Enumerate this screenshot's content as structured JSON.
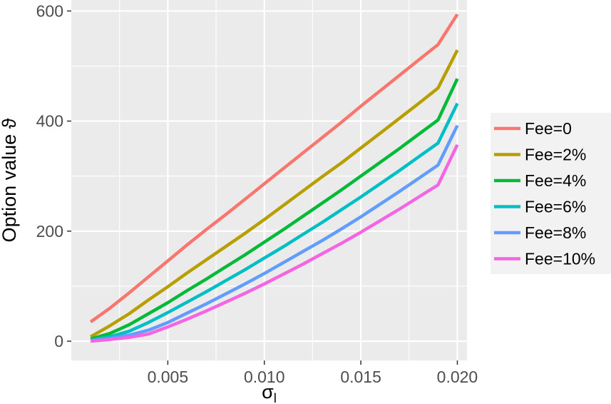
{
  "chart_data": {
    "type": "line",
    "xlabel": "σ",
    "xlabel_sub": "l",
    "ylabel": "Option value ϑ",
    "xlim": [
      0.0,
      0.0205
    ],
    "ylim": [
      -35,
      620
    ],
    "x_ticks": [
      0.005,
      0.01,
      0.015,
      0.02
    ],
    "x_tick_labels": [
      "0.005",
      "0.010",
      "0.015",
      "0.020"
    ],
    "y_ticks": [
      0,
      200,
      400,
      600
    ],
    "y_tick_labels": [
      "0",
      "200",
      "400",
      "600"
    ],
    "grid": true,
    "legend_position": "right",
    "x": [
      0.001,
      0.002,
      0.003,
      0.004,
      0.005,
      0.006,
      0.007,
      0.008,
      0.009,
      0.01,
      0.011,
      0.012,
      0.013,
      0.014,
      0.015,
      0.016,
      0.017,
      0.018,
      0.019,
      0.02
    ],
    "series": [
      {
        "name": "Fee=0",
        "color": "#F8766D",
        "values": [
          35,
          60,
          88,
          117,
          146,
          175,
          203,
          230,
          258,
          286,
          314,
          342,
          370,
          398,
          427,
          455,
          483,
          511,
          539,
          594
        ]
      },
      {
        "name": "Fee=2%",
        "color": "#B79F00",
        "values": [
          8,
          28,
          50,
          75,
          99,
          124,
          148,
          172,
          196,
          221,
          247,
          273,
          299,
          324,
          351,
          378,
          405,
          432,
          460,
          529
        ]
      },
      {
        "name": "Fee=4%",
        "color": "#00BA38",
        "values": [
          4,
          14,
          30,
          50,
          70,
          92,
          113,
          135,
          157,
          180,
          203,
          227,
          251,
          275,
          300,
          325,
          350,
          376,
          402,
          477
        ]
      },
      {
        "name": "Fee=6%",
        "color": "#00BFC4",
        "values": [
          2,
          8,
          18,
          34,
          52,
          71,
          90,
          110,
          130,
          151,
          172,
          194,
          216,
          239,
          262,
          286,
          310,
          335,
          360,
          432
        ]
      },
      {
        "name": "Fee=8%",
        "color": "#619CFF",
        "values": [
          1,
          5,
          11,
          20,
          34,
          51,
          68,
          86,
          104,
          123,
          143,
          163,
          183,
          204,
          226,
          249,
          272,
          296,
          320,
          392
        ]
      },
      {
        "name": "Fee=10%",
        "color": "#F564E3",
        "values": [
          0,
          3,
          7,
          13,
          26,
          40,
          55,
          71,
          87,
          104,
          122,
          140,
          159,
          178,
          198,
          219,
          240,
          262,
          284,
          357
        ]
      }
    ]
  }
}
